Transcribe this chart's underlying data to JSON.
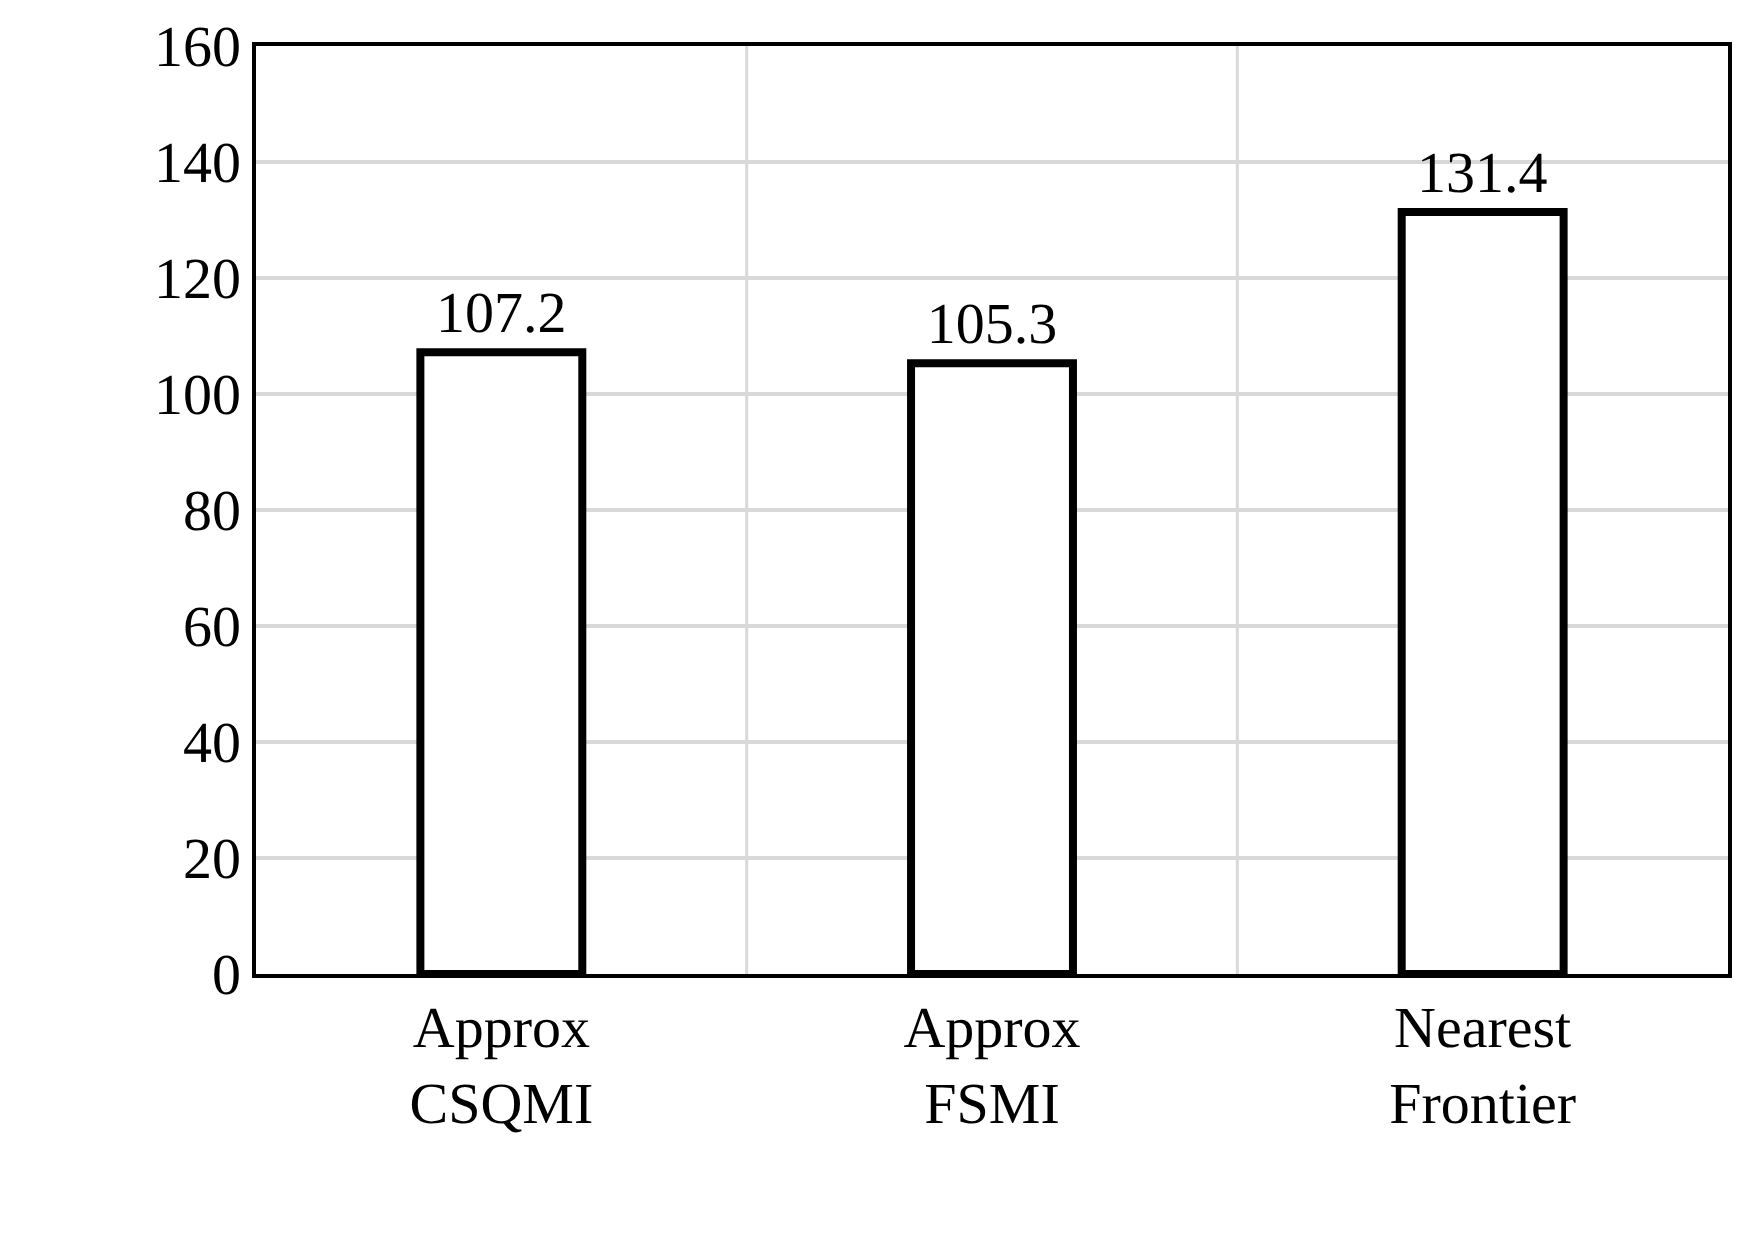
{
  "chart_data": {
    "type": "bar",
    "categories": [
      "Approx CSQMI",
      "Approx FSMI",
      "Nearest Frontier"
    ],
    "values": [
      107.2,
      105.3,
      131.4
    ],
    "color": "#ffffff",
    "ylim": [
      0,
      160
    ],
    "yticks": [
      0,
      20,
      40,
      60,
      80,
      100,
      120,
      140,
      160
    ],
    "grid": true,
    "data_labels": true
  }
}
